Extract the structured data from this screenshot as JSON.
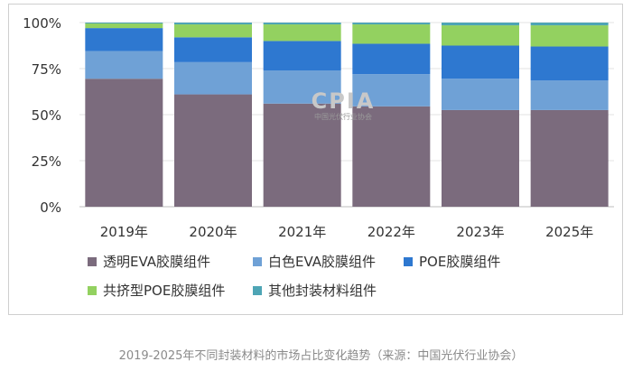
{
  "chart_data": {
    "type": "bar",
    "stacked": true,
    "categories": [
      "2019年",
      "2020年",
      "2021年",
      "2022年",
      "2023年",
      "2025年"
    ],
    "y_ticks": [
      "0%",
      "25%",
      "50%",
      "75%",
      "100%"
    ],
    "ylim": [
      0,
      100
    ],
    "legend_position": "bottom",
    "grid": true,
    "series": [
      {
        "name": "透明EVA胶膜组件",
        "color": "#7b6b7d",
        "values": [
          69.5,
          61.0,
          56.0,
          54.5,
          52.5,
          52.5
        ]
      },
      {
        "name": "白色EVA胶膜组件",
        "color": "#6fa1d6",
        "values": [
          15.0,
          17.5,
          18.0,
          17.5,
          17.0,
          16.0
        ]
      },
      {
        "name": "POE胶膜组件",
        "color": "#2e78d0",
        "values": [
          12.5,
          13.5,
          16.0,
          16.5,
          18.0,
          18.5
        ]
      },
      {
        "name": "共挤型POE胶膜组件",
        "color": "#93d160",
        "values": [
          2.5,
          7.0,
          9.0,
          10.5,
          11.0,
          11.5
        ]
      },
      {
        "name": "其他封装材料组件",
        "color": "#4ea5b5",
        "values": [
          0.5,
          1.0,
          1.0,
          1.0,
          1.5,
          1.5
        ]
      }
    ]
  },
  "watermark": {
    "logo": "CPIA",
    "text": "中国光伏行业协会"
  },
  "caption": "2019-2025年不同封装材料的市场占比变化趋势（来源：中国光伏行业协会）"
}
